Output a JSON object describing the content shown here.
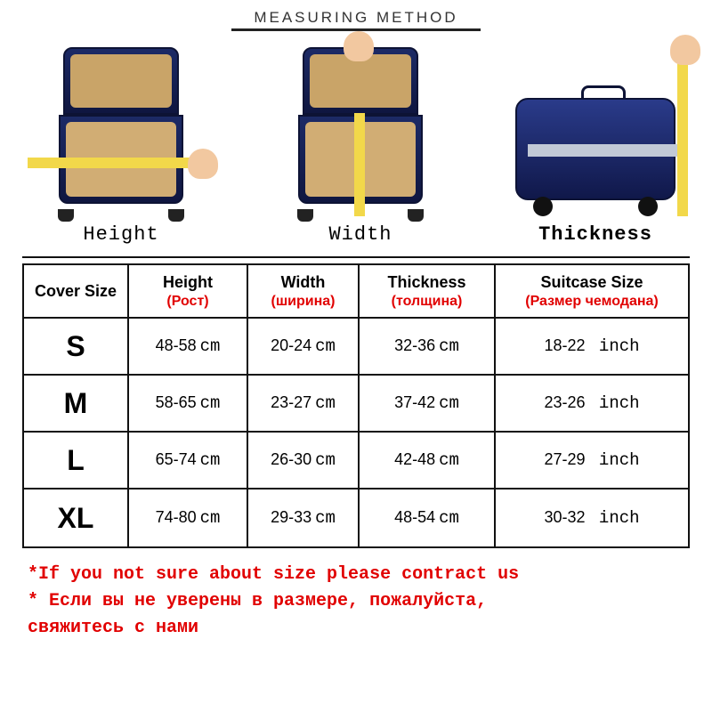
{
  "colors": {
    "accent_red": "#e10000",
    "border": "#111111",
    "suitcase_shell": "#1c2a66",
    "suitcase_interior": "#d1ad74",
    "tape": "#f2d84a",
    "background": "#ffffff"
  },
  "header": {
    "title": "MEASURING METHOD"
  },
  "measure": {
    "height_label": "Height",
    "width_label": "Width",
    "thickness_label": "Thickness"
  },
  "table": {
    "columns": {
      "cover": {
        "main": "Cover Size",
        "sub": ""
      },
      "height": {
        "main": "Height",
        "sub": "(Рост)"
      },
      "width": {
        "main": "Width",
        "sub": "(ширина)"
      },
      "thickness": {
        "main": "Thickness",
        "sub": "(толщина)"
      },
      "suitcase": {
        "main": "Suitcase Size",
        "sub": "(Размер чемодана)"
      }
    },
    "unit_cm": "cm",
    "unit_inch": "inch",
    "rows": [
      {
        "size": "S",
        "height": "48-58",
        "width": "20-24",
        "thickness": "32-36",
        "suitcase": "18-22"
      },
      {
        "size": "M",
        "height": "58-65",
        "width": "23-27",
        "thickness": "37-42",
        "suitcase": "23-26"
      },
      {
        "size": "L",
        "height": "65-74",
        "width": "26-30",
        "thickness": "42-48",
        "suitcase": "27-29"
      },
      {
        "size": "XL",
        "height": "74-80",
        "width": "29-33",
        "thickness": "48-54",
        "suitcase": "30-32"
      }
    ]
  },
  "notice": {
    "line1": "*If you not sure about size please contract us",
    "line2": "* Если вы не уверены в размере, пожалуйста,",
    "line3": "свяжитесь с нами"
  },
  "style": {
    "table_font_size": 18,
    "size_label_font_size": 32,
    "header_letter_spacing": 3,
    "notice_font_size": 20
  }
}
